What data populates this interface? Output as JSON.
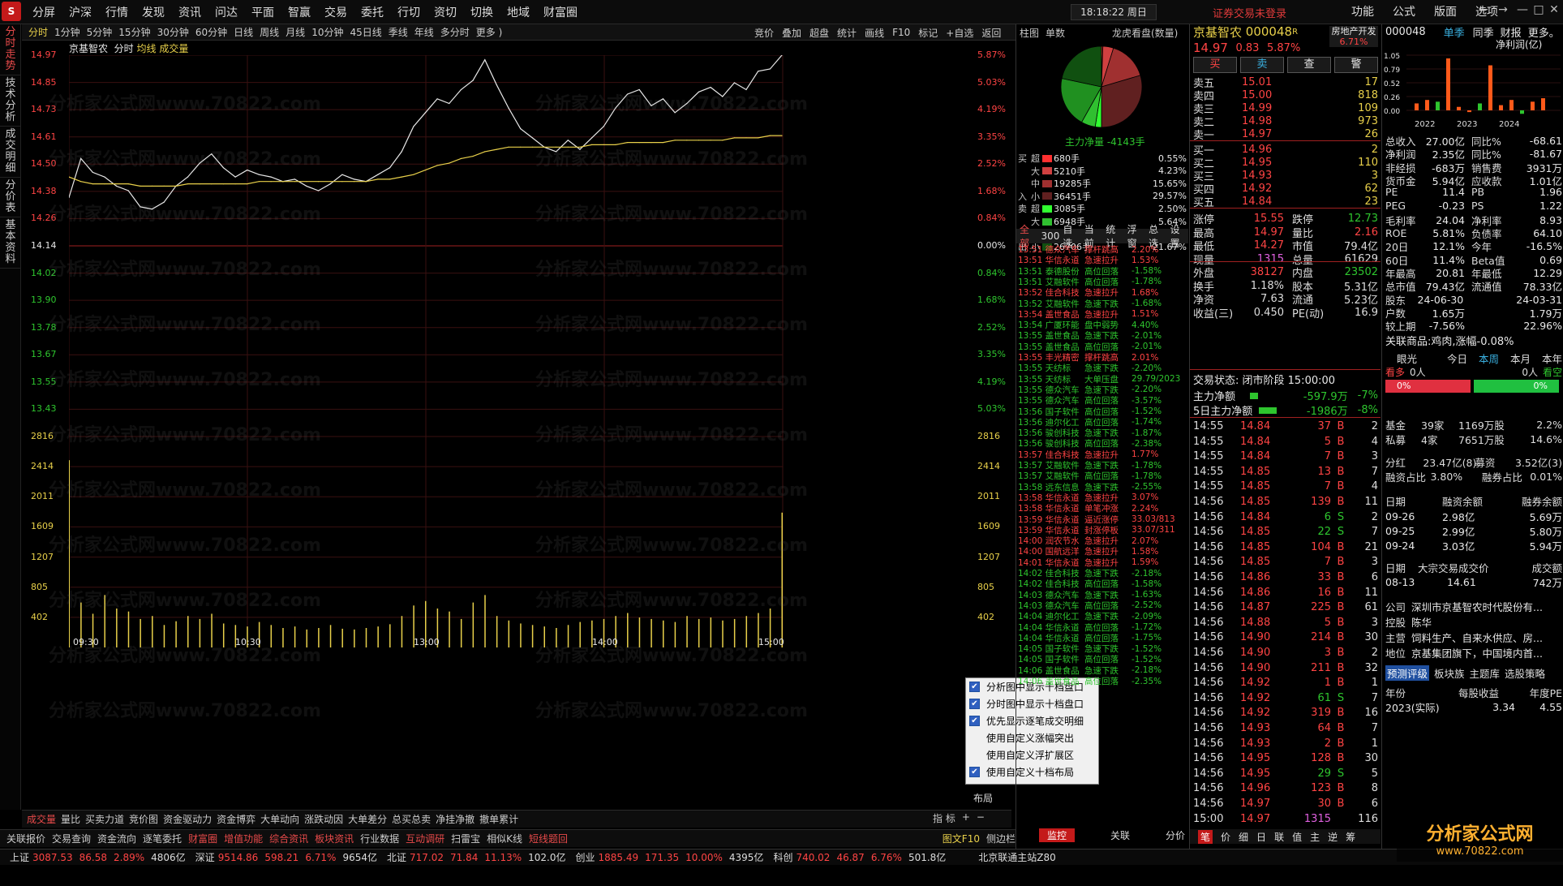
{
  "app": {
    "logo": "S",
    "menu": [
      "分屏",
      "沪深",
      "行情",
      "发现",
      "资讯",
      "问达",
      "平面",
      "智赢",
      "交易",
      "委托",
      "行切",
      "资切",
      "切换",
      "地域",
      "财富圈"
    ],
    "clock": "18:18:22 周日",
    "not_logged": "证券交易未登录",
    "right_menu": [
      "功能",
      "公式",
      "版面",
      "选项"
    ],
    "win": [
      "←",
      "→",
      "—",
      "□",
      "✕"
    ]
  },
  "vtabs": [
    "分时走势",
    "技术分析",
    "成交明细",
    "分价表",
    "基本资料"
  ],
  "periods": [
    "分时",
    "1分钟",
    "5分钟",
    "15分钟",
    "30分钟",
    "60分钟",
    "日线",
    "周线",
    "月线",
    "10分钟",
    "45日线",
    "季线",
    "年线",
    "多分时",
    "更多 )"
  ],
  "tools": [
    "竞价",
    "叠加",
    "超盘",
    "统计",
    "画线",
    "F10",
    "标记",
    "+自选",
    "返回"
  ],
  "charthead": {
    "name": "京基智农",
    "mode": "分时",
    "avg": "均线",
    "vol": "成交量"
  },
  "chart_data": {
    "type": "line",
    "title": "",
    "x_labels": [
      "09:30",
      "10:30",
      "13:00",
      "14:00",
      "15:00"
    ],
    "price_ticks": [
      "14.97",
      "14.85",
      "14.73",
      "14.61",
      "14.50",
      "14.38",
      "14.26",
      "14.14",
      "14.02",
      "13.90",
      "13.78",
      "13.67",
      "13.55",
      "13.43"
    ],
    "pct_ticks": [
      "5.87%",
      "5.03%",
      "4.19%",
      "3.35%",
      "2.52%",
      "1.68%",
      "0.84%",
      "0.00%",
      "0.84%",
      "1.68%",
      "2.52%",
      "3.35%",
      "4.19%",
      "5.03%"
    ],
    "vol_ticks": [
      "2816",
      "2414",
      "2011",
      "1609",
      "1207",
      "805",
      "402"
    ],
    "prev_close": 14.14,
    "ylim": [
      13.31,
      14.97
    ],
    "series": [
      {
        "name": "",
        "values": [
          14.35,
          14.52,
          14.46,
          14.44,
          14.4,
          14.38,
          14.31,
          14.3,
          14.33,
          14.4,
          14.44,
          14.5,
          14.54,
          14.48,
          14.44,
          14.47,
          14.45,
          14.44,
          14.42,
          14.43,
          14.4,
          14.38,
          14.41,
          14.45,
          14.43,
          14.42,
          14.45,
          14.48,
          14.55,
          14.66,
          14.72,
          14.78,
          14.76,
          14.82,
          14.86,
          14.95,
          14.84,
          14.74,
          14.65,
          14.61,
          14.57,
          14.55,
          14.6,
          14.56,
          14.61,
          14.66,
          14.74,
          14.8,
          14.82,
          14.75,
          14.78,
          14.72,
          14.76,
          14.81,
          14.83,
          14.79,
          14.85,
          14.82,
          14.9,
          14.91,
          14.97
        ]
      },
      {
        "name": "",
        "values": [
          14.44,
          14.42,
          14.41,
          14.41,
          14.41,
          14.41,
          14.4,
          14.4,
          14.4,
          14.4,
          14.41,
          14.41,
          14.41,
          14.41,
          14.41,
          14.41,
          14.42,
          14.42,
          14.42,
          14.42,
          14.42,
          14.42,
          14.42,
          14.42,
          14.42,
          14.42,
          14.43,
          14.43,
          14.44,
          14.45,
          14.47,
          14.49,
          14.5,
          14.52,
          14.53,
          14.55,
          14.56,
          14.57,
          14.57,
          14.57,
          14.57,
          14.57,
          14.57,
          14.57,
          14.58,
          14.58,
          14.58,
          14.59,
          14.59,
          14.59,
          14.59,
          14.6,
          14.6,
          14.6,
          14.6,
          14.6,
          14.61,
          14.61,
          14.61,
          14.62,
          14.62
        ]
      }
    ],
    "volumes": [
      2500,
      600,
      450,
      700,
      520,
      480,
      380,
      420,
      300,
      350,
      420,
      380,
      450,
      320,
      300,
      280,
      340,
      300,
      260,
      280,
      240,
      260,
      300,
      250,
      240,
      260,
      280,
      310,
      420,
      560,
      620,
      520,
      480,
      380,
      600,
      700,
      420,
      360,
      320,
      300,
      280,
      260,
      300,
      340,
      360,
      380,
      420,
      460,
      400,
      380,
      360,
      340,
      420,
      380,
      400,
      360,
      380,
      420,
      460,
      520,
      1800
    ]
  },
  "bottomtabs": [
    "成交量",
    "量比",
    "买卖力道",
    "竞价图",
    "资金驱动力",
    "资金博弈",
    "大单动向",
    "涨跌动因",
    "大单差分",
    "总买总卖",
    "净挂净撤",
    "撤单累计"
  ],
  "bottomright": [
    "指 标",
    "+",
    "−"
  ],
  "bottomtabs2": [
    "关联报价",
    "交易查询",
    "资金流向",
    "逐笔委托",
    "财富圈",
    "增值功能",
    "综合资讯",
    "板块资讯",
    "行业数据",
    "互动调研",
    "扫雷宝",
    "相似K线",
    "短线题回",
    "图文F10",
    "侧边栏"
  ],
  "status": [
    {
      "n": "上证",
      "v": "3087.53",
      "c": "86.58",
      "p": "2.89%",
      "a": "4806亿"
    },
    {
      "n": "深证",
      "v": "9514.86",
      "c": "598.21",
      "p": "6.71%",
      "a": "9654亿"
    },
    {
      "n": "北证",
      "v": "717.02",
      "c": "71.84",
      "p": "11.13%",
      "a": "102.0亿"
    },
    {
      "n": "创业",
      "v": "1885.49",
      "c": "171.35",
      "p": "10.00%",
      "a": "4395亿"
    },
    {
      "n": "科创",
      "v": "740.02",
      "c": "46.87",
      "p": "6.76%",
      "a": "501.8亿"
    }
  ],
  "status_right": "北京联通主站Z80",
  "mid": {
    "tabs": [
      "柱图",
      "单数"
    ],
    "pie_title": "龙虎看盘(数量)",
    "net": "主力净量 -4143手",
    "pie_slices": [
      {
        "v": 0.55,
        "c": "#ff3030"
      },
      {
        "v": 4.23,
        "c": "#d04040"
      },
      {
        "v": 15.65,
        "c": "#a03030"
      },
      {
        "v": 29.57,
        "c": "#602020"
      },
      {
        "v": 2.5,
        "c": "#30ff30"
      },
      {
        "v": 5.64,
        "c": "#30c030"
      },
      {
        "v": 20.19,
        "c": "#209020"
      },
      {
        "v": 21.67,
        "c": "#105010"
      }
    ],
    "flows": [
      {
        "side": "买",
        "size": "超",
        "vol": "680手",
        "pct": "0.55%",
        "c": "#ff3030"
      },
      {
        "side": "",
        "size": "大",
        "vol": "5210手",
        "pct": "4.23%",
        "c": "#d04040"
      },
      {
        "side": "",
        "size": "中",
        "vol": "19285手",
        "pct": "15.65%",
        "c": "#a03030"
      },
      {
        "side": "入",
        "size": "小",
        "vol": "36451手",
        "pct": "29.57%",
        "c": "#602020"
      },
      {
        "side": "卖",
        "size": "超",
        "vol": "3085手",
        "pct": "2.50%",
        "c": "#30ff30"
      },
      {
        "side": "",
        "size": "大",
        "vol": "6948手",
        "pct": "5.64%",
        "c": "#30c030"
      },
      {
        "side": "",
        "size": "中",
        "vol": "24886手",
        "pct": "20.19%",
        "c": "#209020"
      },
      {
        "side": "出",
        "size": "小",
        "vol": "26706手",
        "pct": "21.67%",
        "c": "#105010"
      }
    ],
    "listtabs": [
      "全部",
      "300",
      "自选",
      "当前",
      "统计",
      "浮窗",
      "总选",
      "设置"
    ],
    "alerts": [
      [
        "13:51 德众汽车",
        "撑杆跳高",
        "2.20%",
        "r"
      ],
      [
        "13:51 华信永道",
        "急速拉升",
        "1.53%",
        "r"
      ],
      [
        "13:51 泰德股份",
        "高位回落",
        "-1.58%",
        "g"
      ],
      [
        "13:51 艾融软件",
        "高位回落",
        "-1.78%",
        "g"
      ],
      [
        "13:52 佳合科技",
        "急速拉升",
        "1.68%",
        "r"
      ],
      [
        "13:52 艾融软件",
        "急速下跌",
        "-1.68%",
        "g"
      ],
      [
        "13:54 盖世食品",
        "急速拉升",
        "1.51%",
        "r"
      ],
      [
        "13:54 广厦环能",
        "盘中弱势",
        "4.40%",
        "g"
      ],
      [
        "13:55 盖世食品",
        "急速下跌",
        "-2.01%",
        "g"
      ],
      [
        "13:55 盖世食品",
        "高位回落",
        "-2.01%",
        "g"
      ],
      [
        "13:55 丰光精密",
        "撑杆跳高",
        "2.01%",
        "r"
      ],
      [
        "13:55 天纺标",
        "急速下跌",
        "-2.20%",
        "g"
      ],
      [
        "13:55 天纺标",
        "大单压盘",
        "29.79/2023",
        "g"
      ],
      [
        "13:55 德众汽车",
        "急速下跌",
        "-2.20%",
        "g"
      ],
      [
        "13:55 德众汽车",
        "高位回落",
        "-3.57%",
        "g"
      ],
      [
        "13:56 国子软件",
        "高位回落",
        "-1.52%",
        "g"
      ],
      [
        "13:56 迪尔化工",
        "高位回落",
        "-1.74%",
        "g"
      ],
      [
        "13:56 骏创科技",
        "急速下跌",
        "-1.87%",
        "g"
      ],
      [
        "13:56 骏创科技",
        "高位回落",
        "-2.38%",
        "g"
      ],
      [
        "13:57 佳合科技",
        "急速拉升",
        "1.77%",
        "r"
      ],
      [
        "13:57 艾融软件",
        "急速下跌",
        "-1.78%",
        "g"
      ],
      [
        "13:57 艾融软件",
        "高位回落",
        "-1.78%",
        "g"
      ],
      [
        "13:58 远东信息",
        "急速下跌",
        "-2.55%",
        "g"
      ],
      [
        "13:58 华信永道",
        "急速拉升",
        "3.07%",
        "r"
      ],
      [
        "13:58 华信永道",
        "单笔冲涨",
        "2.24%",
        "r"
      ],
      [
        "13:59 华信永道",
        "逼近涨停",
        "33.03/813",
        "r"
      ],
      [
        "13:59 华信永道",
        "封涨停板",
        "33.07/311",
        "r"
      ],
      [
        "14:00 润农节水",
        "急速拉升",
        "2.07%",
        "r"
      ],
      [
        "14:00 国航远洋",
        "急速拉升",
        "1.58%",
        "r"
      ],
      [
        "14:01 华信永道",
        "急速拉升",
        "1.59%",
        "r"
      ],
      [
        "14:02 佳合科技",
        "急速下跌",
        "-2.18%",
        "g"
      ],
      [
        "14:02 佳合科技",
        "高位回落",
        "-1.58%",
        "g"
      ],
      [
        "14:03 德众汽车",
        "急速下跌",
        "-1.63%",
        "g"
      ],
      [
        "14:03 德众汽车",
        "高位回落",
        "-2.52%",
        "g"
      ],
      [
        "14:04 迪尔化工",
        "急速下跌",
        "-2.09%",
        "g"
      ],
      [
        "14:04 华信永道",
        "高位回落",
        "-1.72%",
        "g"
      ],
      [
        "14:04 华信永道",
        "高位回落",
        "-1.75%",
        "g"
      ],
      [
        "14:05 国子软件",
        "急速下跌",
        "-1.52%",
        "g"
      ],
      [
        "14:05 国子软件",
        "高位回落",
        "-1.52%",
        "g"
      ],
      [
        "14:06 盖世食品",
        "急速下跌",
        "-2.18%",
        "g"
      ],
      [
        "14:06 盖世食品",
        "高位回落",
        "-2.35%",
        "g"
      ]
    ]
  },
  "popup": [
    {
      "t": "分析图中显示十档盘口",
      "c": true
    },
    {
      "t": "分时图中显示十档盘口",
      "c": true
    },
    {
      "t": "优先显示逐笔成交明细",
      "c": true
    },
    {
      "t": "使用自定义涨幅突出",
      "c": false
    },
    {
      "t": "使用自定义浮扩展区",
      "c": false
    },
    {
      "t": "使用自定义十档布局",
      "c": true
    }
  ],
  "popup_label": "布局",
  "stock": {
    "name": "京基智农",
    "code": "000048",
    "tag": "R",
    "price": "14.97",
    "chg": "0.83",
    "pct": "5.87%",
    "sector": "房地产开发",
    "sector_pct": "6.71%",
    "btns": [
      "买",
      "卖",
      "查",
      "警"
    ],
    "asks": [
      [
        "卖五",
        "15.01",
        "17"
      ],
      [
        "卖四",
        "15.00",
        "818"
      ],
      [
        "卖三",
        "14.99",
        "109"
      ],
      [
        "卖二",
        "14.98",
        "973"
      ],
      [
        "卖一",
        "14.97",
        "26"
      ]
    ],
    "bids": [
      [
        "买一",
        "14.96",
        "2"
      ],
      [
        "买二",
        "14.95",
        "110"
      ],
      [
        "买三",
        "14.93",
        "3"
      ],
      [
        "买四",
        "14.92",
        "62"
      ],
      [
        "买五",
        "14.84",
        "23"
      ]
    ],
    "stats": [
      [
        "涨停",
        "15.55",
        "跌停",
        "12.73"
      ],
      [
        "最高",
        "14.97",
        "量比",
        "2.16"
      ],
      [
        "最低",
        "14.27",
        "市值",
        "79.4亿"
      ],
      [
        "现量",
        "1315",
        "总量",
        "61629"
      ],
      [
        "外盘",
        "38127",
        "内盘",
        "23502"
      ],
      [
        "换手",
        "1.18%",
        "股本",
        "5.31亿"
      ],
      [
        "净资",
        "7.63",
        "流通",
        "5.23亿"
      ],
      [
        "收益(三)",
        "0.450",
        "PE(动)",
        "16.9"
      ]
    ],
    "trade_state": "交易状态: 闭市阶段 15:00:00",
    "main_net": "主力净额",
    "main_net_v": "-597.9万",
    "main_net_p": "-7%",
    "net5": "5日主力净额",
    "net5_v": "-1986万",
    "net5_p": "-8%",
    "ticks": [
      [
        "14:55",
        "14.84",
        "37",
        "B",
        "2"
      ],
      [
        "14:55",
        "14.84",
        "5",
        "B",
        "4"
      ],
      [
        "14:55",
        "14.84",
        "7",
        "B",
        "3"
      ],
      [
        "14:55",
        "14.85",
        "13",
        "B",
        "7"
      ],
      [
        "14:55",
        "14.85",
        "7",
        "B",
        "4"
      ],
      [
        "14:56",
        "14.85",
        "139",
        "B",
        "11"
      ],
      [
        "14:56",
        "14.84",
        "6",
        "S",
        "2"
      ],
      [
        "14:56",
        "14.85",
        "22",
        "S",
        "7"
      ],
      [
        "14:56",
        "14.85",
        "104",
        "B",
        "21"
      ],
      [
        "14:56",
        "14.85",
        "7",
        "B",
        "3"
      ],
      [
        "14:56",
        "14.86",
        "33",
        "B",
        "6"
      ],
      [
        "14:56",
        "14.86",
        "16",
        "B",
        "11"
      ],
      [
        "14:56",
        "14.87",
        "225",
        "B",
        "61"
      ],
      [
        "14:56",
        "14.88",
        "5",
        "B",
        "3"
      ],
      [
        "14:56",
        "14.90",
        "214",
        "B",
        "30"
      ],
      [
        "14:56",
        "14.90",
        "3",
        "B",
        "2"
      ],
      [
        "14:56",
        "14.90",
        "211",
        "B",
        "32"
      ],
      [
        "14:56",
        "14.92",
        "1",
        "B",
        "1"
      ],
      [
        "14:56",
        "14.92",
        "61",
        "S",
        "7"
      ],
      [
        "14:56",
        "14.92",
        "319",
        "B",
        "16"
      ],
      [
        "14:56",
        "14.93",
        "64",
        "B",
        "7"
      ],
      [
        "14:56",
        "14.93",
        "2",
        "B",
        "1"
      ],
      [
        "14:56",
        "14.95",
        "128",
        "B",
        "30"
      ],
      [
        "14:56",
        "14.95",
        "29",
        "S",
        "5"
      ],
      [
        "14:56",
        "14.96",
        "123",
        "B",
        "8"
      ],
      [
        "14:56",
        "14.97",
        "30",
        "B",
        "6"
      ],
      [
        "15:00",
        "14.97",
        "1315",
        "",
        "116"
      ]
    ]
  },
  "far": {
    "code": "000048",
    "tabs": [
      "单季",
      "同季",
      "财报",
      "更多。"
    ],
    "title": "净利润(亿)",
    "years": [
      "2022",
      "2023",
      "2024"
    ],
    "bar_values": [
      0.2,
      0.3,
      0.25,
      1.5,
      0.1,
      -0.05,
      0.2,
      1.3,
      0.15,
      0.3,
      -0.1,
      0.25,
      0.35
    ],
    "yticks": [
      "1.05",
      "0.79",
      "0.52",
      "0.26",
      "0.00"
    ],
    "fin": [
      [
        "总收入",
        "27.00亿",
        "同比%",
        "-68.61"
      ],
      [
        "净利润",
        "2.35亿",
        "同比%",
        "-81.67"
      ],
      [
        "非经损",
        "-683万",
        "销售费",
        "3931万"
      ],
      [
        "货币金",
        "5.94亿",
        "应收款",
        "1.01亿"
      ],
      [
        "PE",
        "11.4",
        "PB",
        "1.96"
      ],
      [
        "PEG",
        "-0.23",
        "PS",
        "1.22"
      ],
      [
        "毛利率",
        "24.04",
        "净利率",
        "8.93"
      ],
      [
        "ROE",
        "5.81%",
        "负债率",
        "64.10"
      ],
      [
        "20日",
        "12.1%",
        "今年",
        "-16.5%"
      ],
      [
        "60日",
        "11.4%",
        "Beta值",
        "0.69"
      ],
      [
        "年最高",
        "20.81",
        "年最低",
        "12.29"
      ],
      [
        "总市值",
        "79.43亿",
        "流通值",
        "78.33亿"
      ],
      [
        "股东",
        "24-06-30",
        "",
        "24-03-31"
      ],
      [
        "户数",
        "1.65万",
        "",
        "1.79万"
      ],
      [
        "较上期",
        "-7.56%",
        "",
        "22.96%"
      ]
    ],
    "related": "关联商品:鸡肉,涨幅-0.08%",
    "eye": [
      "眼光",
      "今日",
      "本周",
      "本月",
      "本年"
    ],
    "eye_row": [
      "看多",
      "0人",
      "0人",
      "看空"
    ],
    "eye_pct": [
      "0%",
      "0%"
    ],
    "fund": [
      [
        "基金",
        "39家",
        "1169万股",
        "2.2%"
      ],
      [
        "私募",
        "4家",
        "7651万股",
        "14.6%"
      ]
    ],
    "div": [
      [
        "分红",
        "23.47亿(8)",
        "募资",
        "3.52亿(3)"
      ],
      [
        "融资占比",
        "3.80%",
        "融券占比",
        "0.01%"
      ]
    ],
    "margin_head": [
      "日期",
      "融资余额",
      "融券余额"
    ],
    "margin": [
      [
        "09-26",
        "2.98亿",
        "5.69万"
      ],
      [
        "09-25",
        "2.99亿",
        "5.80万"
      ],
      [
        "09-24",
        "3.03亿",
        "5.94万"
      ]
    ],
    "block_head": [
      "日期",
      "大宗交易成交价",
      "成交额"
    ],
    "block": [
      "08-13",
      "14.61",
      "742万"
    ],
    "company": [
      [
        "公司",
        "深圳市京基智农时代股份有..."
      ],
      [
        "控股",
        "陈华"
      ],
      [
        "主营",
        "饲料生产、自来水供应、房..."
      ],
      [
        "地位",
        "京基集团旗下，中国境内首..."
      ]
    ],
    "links": [
      "预测评级",
      "板块族",
      "主题库",
      "选股策略"
    ],
    "eps_head": [
      "年份",
      "每股收益",
      "年度PE"
    ],
    "eps": [
      "2023(实际)",
      "3.34",
      "4.55"
    ],
    "bottom_tabs": [
      "笔",
      "价",
      "细",
      "日",
      "联",
      "值",
      "主",
      "逆",
      "筹"
    ],
    "watermark_brand": "分析家公式网",
    "watermark_url": "www.70822.com",
    "bottom_mid": [
      "监控",
      "关联",
      "分价"
    ]
  }
}
